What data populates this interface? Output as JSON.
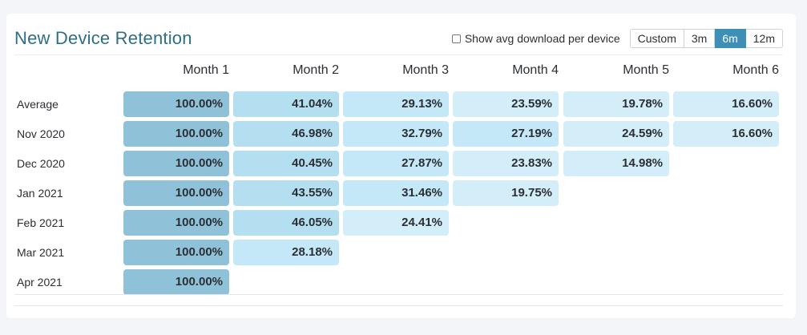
{
  "title": "New Device Retention",
  "controls": {
    "checkbox_label": "Show avg download per device",
    "checked": false,
    "ranges": [
      "Custom",
      "3m",
      "6m",
      "12m"
    ],
    "active_range": "6m"
  },
  "colors": {
    "accent": "#3e8fb5",
    "title": "#2e6f86",
    "level_100": "#8fc2d8",
    "level_high": "#b3dff0",
    "level_mid": "#c4e8f7",
    "level_low": "#d3eef9"
  },
  "table": {
    "columns": [
      "Month 1",
      "Month 2",
      "Month 3",
      "Month 4",
      "Month 5",
      "Month 6"
    ],
    "rows": [
      {
        "label": "Average",
        "values": [
          "100.00%",
          "41.04%",
          "29.13%",
          "23.59%",
          "19.78%",
          "16.60%"
        ]
      },
      {
        "label": "Nov 2020",
        "values": [
          "100.00%",
          "46.98%",
          "32.79%",
          "27.19%",
          "24.59%",
          "16.60%"
        ]
      },
      {
        "label": "Dec 2020",
        "values": [
          "100.00%",
          "40.45%",
          "27.87%",
          "23.83%",
          "14.98%"
        ]
      },
      {
        "label": "Jan 2021",
        "values": [
          "100.00%",
          "43.55%",
          "31.46%",
          "19.75%"
        ]
      },
      {
        "label": "Feb 2021",
        "values": [
          "100.00%",
          "46.05%",
          "24.41%"
        ]
      },
      {
        "label": "Mar 2021",
        "values": [
          "100.00%",
          "28.18%"
        ]
      },
      {
        "label": "Apr 2021",
        "values": [
          "100.00%"
        ]
      }
    ]
  }
}
